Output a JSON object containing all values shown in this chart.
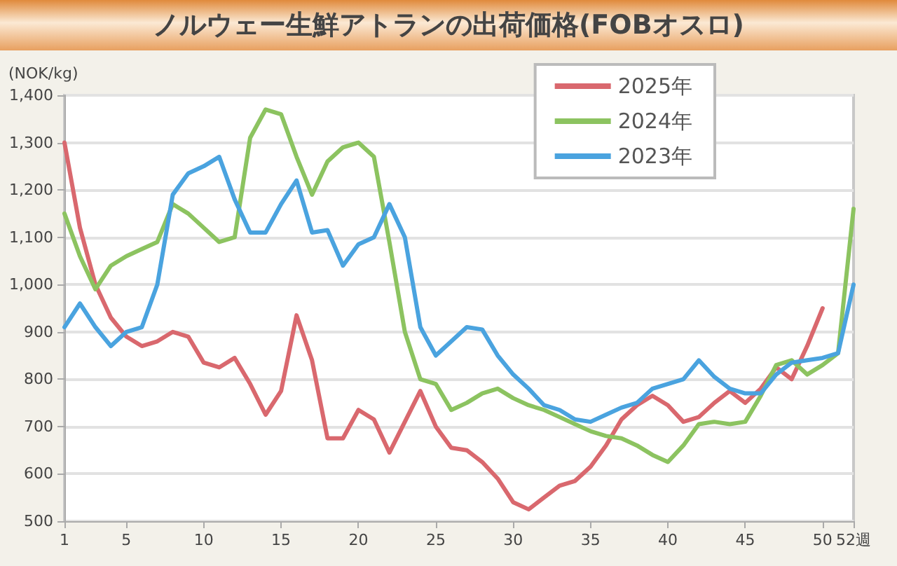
{
  "chart_data": {
    "type": "line",
    "title": "ノルウェー生鮮アトランの出荷価格(FOBオスロ)",
    "ylabel": "(NOK/kg)",
    "x": [
      1,
      2,
      3,
      4,
      5,
      6,
      7,
      8,
      9,
      10,
      11,
      12,
      13,
      14,
      15,
      16,
      17,
      18,
      19,
      20,
      21,
      22,
      23,
      24,
      25,
      26,
      27,
      28,
      29,
      30,
      31,
      32,
      33,
      34,
      35,
      36,
      37,
      38,
      39,
      40,
      41,
      42,
      43,
      44,
      45,
      46,
      47,
      48,
      49,
      50,
      51,
      52
    ],
    "series": [
      {
        "name": "2025年",
        "color": "#d9686e",
        "values": [
          1300,
          1120,
          1000,
          930,
          890,
          870,
          880,
          900,
          890,
          835,
          825,
          845,
          790,
          725,
          775,
          935,
          840,
          675,
          675,
          735,
          715,
          645,
          710,
          775,
          700,
          655,
          650,
          625,
          590,
          540,
          525,
          550,
          575,
          585,
          615,
          660,
          715,
          745,
          765,
          745,
          710,
          720,
          750,
          775,
          750,
          780,
          825,
          800,
          870,
          950,
          null,
          null
        ]
      },
      {
        "name": "2024年",
        "color": "#8cc360",
        "values": [
          1150,
          1060,
          990,
          1040,
          1060,
          1075,
          1090,
          1170,
          1150,
          1120,
          1090,
          1100,
          1310,
          1370,
          1360,
          1270,
          1190,
          1260,
          1290,
          1300,
          1270,
          1090,
          900,
          800,
          790,
          735,
          750,
          770,
          780,
          760,
          745,
          735,
          720,
          705,
          690,
          680,
          675,
          660,
          640,
          625,
          660,
          705,
          710,
          705,
          710,
          765,
          830,
          840,
          810,
          830,
          855,
          1160
        ]
      },
      {
        "name": "2023年",
        "color": "#4aa3df",
        "values": [
          910,
          960,
          910,
          870,
          900,
          910,
          1000,
          1190,
          1235,
          1250,
          1270,
          1180,
          1110,
          1110,
          1170,
          1220,
          1110,
          1115,
          1040,
          1085,
          1100,
          1170,
          1100,
          910,
          850,
          880,
          910,
          905,
          850,
          810,
          780,
          745,
          735,
          715,
          710,
          725,
          740,
          750,
          780,
          790,
          800,
          840,
          805,
          780,
          770,
          770,
          810,
          835,
          840,
          845,
          855,
          1000
        ]
      }
    ],
    "xlim": [
      1,
      52
    ],
    "xticks": [
      1,
      5,
      10,
      15,
      20,
      25,
      30,
      35,
      40,
      45,
      50,
      {
        "value": 52,
        "label": "52週"
      }
    ],
    "ylim": [
      500,
      1400
    ],
    "yticks": [
      500,
      600,
      700,
      800,
      900,
      {
        "value": 1000,
        "label": "1,000"
      },
      {
        "value": 1100,
        "label": "1,100"
      },
      {
        "value": 1200,
        "label": "1,200"
      },
      {
        "value": 1300,
        "label": "1,300"
      },
      {
        "value": 1400,
        "label": "1,400"
      }
    ],
    "grid": "y",
    "legend": "top right",
    "marker": "none",
    "line_style": "solid"
  }
}
